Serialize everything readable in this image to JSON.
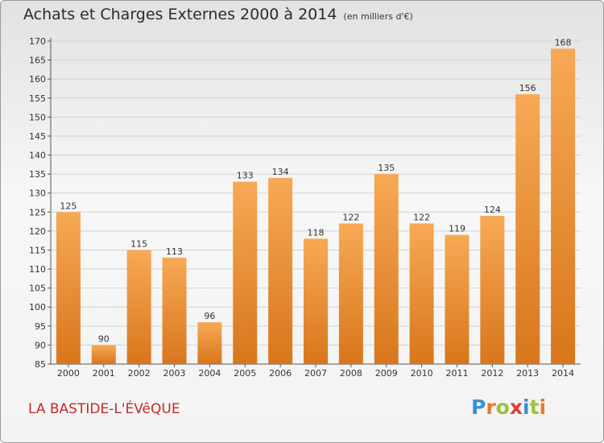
{
  "header": {
    "title": "Achats et Charges Externes 2000 à 2014",
    "unit": "(en milliers d'€)"
  },
  "footer": {
    "commune": "LA BASTIDE-L'ÉVêQUE",
    "logo": [
      "P",
      "r",
      "o",
      "x",
      "i",
      "t",
      "i"
    ]
  },
  "colors": {
    "bar_light": "#f7a955",
    "bar_dark": "#d8761c",
    "title": "#2b2b2b",
    "commune": "#c62a2a",
    "logo": [
      "#3c8fd6",
      "#e8792d",
      "#9ac43c",
      "#e23b3b",
      "#3c8fd6",
      "#9ac43c",
      "#e8792d"
    ]
  },
  "chart_data": {
    "type": "bar",
    "title": "Achats et Charges Externes 2000 à 2014",
    "subtitle": "(en milliers d'€)",
    "categories": [
      "2000",
      "2001",
      "2002",
      "2003",
      "2004",
      "2005",
      "2006",
      "2007",
      "2008",
      "2009",
      "2010",
      "2011",
      "2012",
      "2013",
      "2014"
    ],
    "values": [
      125,
      90,
      115,
      113,
      96,
      133,
      134,
      118,
      122,
      135,
      122,
      119,
      124,
      156,
      168
    ],
    "ylim": [
      85,
      170
    ],
    "yticks": [
      85,
      90,
      95,
      100,
      105,
      110,
      115,
      120,
      125,
      130,
      135,
      140,
      145,
      150,
      155,
      160,
      165,
      170
    ],
    "grid": true,
    "legend": "none"
  }
}
